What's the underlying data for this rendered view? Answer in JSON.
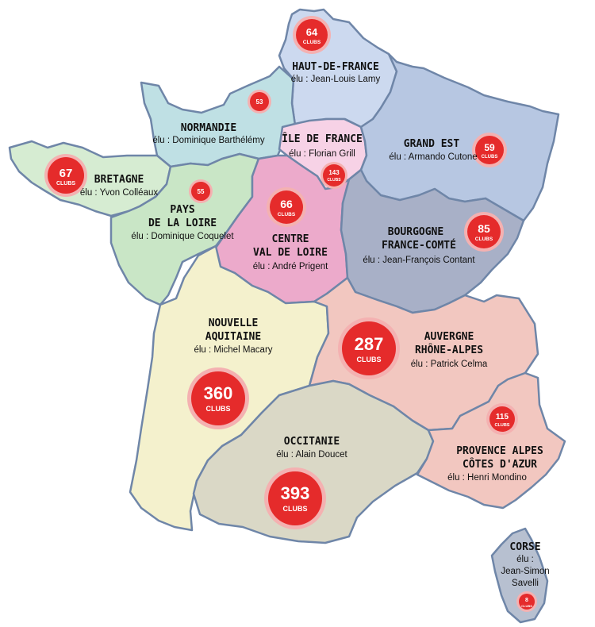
{
  "colors": {
    "border": "#6f86a8",
    "badge": "#e52b2b",
    "badge_rim": "#f4b1b1"
  },
  "clubs_label": "CLUBS",
  "regions": [
    {
      "id": "hauts-de-france",
      "name": [
        "HAUT-DE-FRANCE"
      ],
      "elu": [
        "élu : Jean-Louis Lamy"
      ],
      "clubs": "64",
      "fill": "#ccd9ef"
    },
    {
      "id": "normandie",
      "name": [
        "NORMANDIE"
      ],
      "elu": [
        "élu : Dominique Barthélémy"
      ],
      "clubs": "53",
      "fill": "#bfe0e4"
    },
    {
      "id": "ile-de-france",
      "name": [
        "ÎLE DE FRANCE"
      ],
      "elu": [
        "élu : Florian Grill"
      ],
      "clubs": "143",
      "fill": "#f7d2e6"
    },
    {
      "id": "grand-est",
      "name": [
        "GRAND EST"
      ],
      "elu": [
        "élu : Armando Cutone"
      ],
      "clubs": "59",
      "fill": "#b7c7e2"
    },
    {
      "id": "bretagne",
      "name": [
        "BRETAGNE"
      ],
      "elu": [
        "élu : Yvon Colléaux"
      ],
      "clubs": "67",
      "fill": "#d6ecd2"
    },
    {
      "id": "pays-de-la-loire",
      "name": [
        "PAYS",
        "DE LA LOIRE"
      ],
      "elu": [
        "élu : Dominique Coquelet"
      ],
      "clubs": "55",
      "fill": "#c9e6c6"
    },
    {
      "id": "centre-val-de-loire",
      "name": [
        "CENTRE",
        "VAL DE LOIRE"
      ],
      "elu": [
        "élu : André Prigent"
      ],
      "clubs": "66",
      "fill": "#ecaacb"
    },
    {
      "id": "bourgogne-franche-comte",
      "name": [
        "BOURGOGNE",
        "FRANCE-COMTÉ"
      ],
      "elu": [
        "élu : Jean-François Contant"
      ],
      "clubs": "85",
      "fill": "#a8b0c7"
    },
    {
      "id": "nouvelle-aquitaine",
      "name": [
        "NOUVELLE",
        "AQUITAINE"
      ],
      "elu": [
        "élu : Michel Macary"
      ],
      "clubs": "360",
      "fill": "#f4f1cd"
    },
    {
      "id": "auvergne-rhone-alpes",
      "name": [
        "AUVERGNE",
        "RHÔNE-ALPES"
      ],
      "elu": [
        "élu : Patrick Celma"
      ],
      "clubs": "287",
      "fill": "#f2c7c0"
    },
    {
      "id": "occitanie",
      "name": [
        "OCCITANIE"
      ],
      "elu": [
        "élu : Alain Doucet"
      ],
      "clubs": "393",
      "fill": "#dad8c6"
    },
    {
      "id": "paca",
      "name": [
        "PROVENCE ALPES",
        "CÔTES D'AZUR"
      ],
      "elu": [
        "élu : Henri Mondino"
      ],
      "clubs": "115",
      "fill": "#f2c7c0"
    },
    {
      "id": "corse",
      "name": [
        "CORSE"
      ],
      "elu": [
        "élu :",
        "Jean-Simon",
        "Savelli"
      ],
      "clubs": "8",
      "fill": "#b7c0d0"
    }
  ]
}
